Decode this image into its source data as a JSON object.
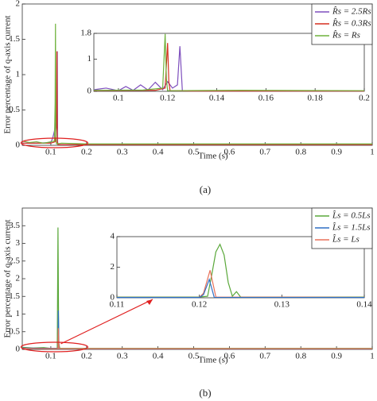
{
  "chart_data": [
    {
      "type": "line",
      "xlabel": "Time (s)",
      "ylabel": "Error percentage of q-axis current",
      "caption": "(a)",
      "xlim": [
        0.02,
        1
      ],
      "ylim": [
        0,
        2
      ],
      "xticks": [
        0.1,
        0.2,
        0.3,
        0.4,
        0.5,
        0.6,
        0.7,
        0.8,
        0.9,
        1
      ],
      "yticks": [
        0,
        0.5,
        1,
        1.5,
        2
      ],
      "legend": "upper right",
      "series": [
        {
          "name": "R̂s = 2.5Rs",
          "color": "#7e4fbd",
          "x": [
            0.02,
            0.06,
            0.1,
            0.105,
            0.11,
            0.114,
            0.117,
            0.118,
            0.119,
            0.12,
            0.2,
            0.5,
            1
          ],
          "values": [
            0.03,
            0.03,
            0.04,
            0.1,
            0.2,
            0.35,
            0.45,
            1.33,
            0.05,
            0.01,
            0.01,
            0.01,
            0.01
          ]
        },
        {
          "name": "R̂s = 0.3Rs",
          "color": "#d62f1f",
          "x": [
            0.02,
            0.06,
            0.1,
            0.112,
            0.116,
            0.117,
            0.118,
            0.12,
            0.2,
            0.5,
            1
          ],
          "values": [
            0.03,
            0.03,
            0.03,
            0.05,
            0.3,
            1.33,
            0.05,
            0.01,
            0.01,
            0.01,
            0.01
          ]
        },
        {
          "name": "R̂s = Rs",
          "color": "#6fb23c",
          "x": [
            0.02,
            0.04,
            0.06,
            0.08,
            0.1,
            0.11,
            0.112,
            0.113,
            0.114,
            0.116,
            0.13,
            0.2,
            0.3,
            0.4,
            0.5,
            0.6,
            0.7,
            0.8,
            0.9,
            1
          ],
          "values": [
            0.06,
            0.04,
            0.05,
            0.03,
            0.05,
            0.06,
            0.6,
            1.72,
            0.1,
            0.02,
            0.03,
            0.02,
            0.02,
            0.02,
            0.02,
            0.02,
            0.02,
            0.02,
            0.02,
            0.02
          ]
        }
      ],
      "inset": {
        "xlim": [
          0.09,
          0.2
        ],
        "ylim": [
          0,
          1.8
        ],
        "xticks": [
          0.1,
          0.12,
          0.14,
          0.16,
          0.18,
          0.2
        ],
        "yticks": [
          0,
          1,
          1.8
        ],
        "series": [
          {
            "color": "#7e4fbd",
            "x": [
              0.09,
              0.095,
              0.1,
              0.103,
              0.106,
              0.109,
              0.112,
              0.115,
              0.118,
              0.12,
              0.122,
              0.124,
              0.125,
              0.126,
              0.13,
              0.2
            ],
            "values": [
              0.05,
              0.1,
              0.02,
              0.15,
              0.03,
              0.2,
              0.04,
              0.28,
              0.05,
              0.3,
              0.1,
              0.2,
              1.4,
              0.02,
              0.01,
              0.01
            ]
          },
          {
            "color": "#d62f1f",
            "x": [
              0.09,
              0.115,
              0.119,
              0.12,
              0.1205,
              0.121,
              0.13,
              0.2
            ],
            "values": [
              0.02,
              0.03,
              0.1,
              1.5,
              0.3,
              0.02,
              0.01,
              0.01
            ]
          },
          {
            "color": "#6fb23c",
            "x": [
              0.09,
              0.11,
              0.118,
              0.119,
              0.1195,
              0.12,
              0.15,
              0.2
            ],
            "values": [
              0.03,
              0.04,
              0.1,
              1.78,
              0.4,
              0.02,
              0.03,
              0.02
            ]
          }
        ]
      }
    },
    {
      "type": "line",
      "xlabel": "Time (s)",
      "ylabel": "Error percentage of q-axis current",
      "caption": "(b)",
      "xlim": [
        0.02,
        1
      ],
      "ylim": [
        0,
        4
      ],
      "xticks": [
        0.1,
        0.2,
        0.3,
        0.4,
        0.5,
        0.6,
        0.7,
        0.8,
        0.9,
        1
      ],
      "yticks": [
        0,
        0.5,
        1,
        1.5,
        2,
        2.5,
        3,
        3.5
      ],
      "legend": "upper right",
      "series": [
        {
          "name": "L̂s = 0.5Ls",
          "color": "#5aa83a",
          "x": [
            0.02,
            0.05,
            0.08,
            0.1,
            0.118,
            0.12,
            0.122,
            0.125,
            0.2,
            0.4,
            0.6,
            0.8,
            1
          ],
          "values": [
            0.06,
            0.04,
            0.05,
            0.03,
            0.03,
            3.45,
            0.2,
            0.03,
            0.03,
            0.03,
            0.03,
            0.03,
            0.03
          ]
        },
        {
          "name": "L̂s = 1.5Ls",
          "color": "#2f6fc4",
          "x": [
            0.02,
            0.1,
            0.12,
            0.121,
            0.123,
            0.2,
            1
          ],
          "values": [
            0.04,
            0.03,
            0.03,
            1.1,
            0.02,
            0.02,
            0.02
          ]
        },
        {
          "name": "L̂s = Ls",
          "color": "#e8715a",
          "x": [
            0.02,
            0.1,
            0.12,
            0.121,
            0.123,
            0.2,
            1
          ],
          "values": [
            0.03,
            0.02,
            0.02,
            0.6,
            0.02,
            0.02,
            0.02
          ]
        }
      ],
      "inset": {
        "xlim": [
          0.11,
          0.14
        ],
        "ylim": [
          0,
          4
        ],
        "xticks": [
          0.11,
          0.12,
          0.13,
          0.14
        ],
        "yticks": [
          0,
          2,
          4
        ],
        "series": [
          {
            "color": "#5aa83a",
            "x": [
              0.11,
              0.12,
              0.121,
              0.1215,
              0.122,
              0.1225,
              0.123,
              0.1235,
              0.124,
              0.1245,
              0.125,
              0.14
            ],
            "values": [
              0.05,
              0.05,
              0.1,
              1.5,
              3.0,
              3.5,
              2.8,
              1.0,
              0.1,
              0.4,
              0.05,
              0.05
            ]
          },
          {
            "color": "#e8715a",
            "x": [
              0.11,
              0.12,
              0.1205,
              0.1213,
              0.122,
              0.14
            ],
            "values": [
              0.03,
              0.03,
              0.3,
              1.8,
              0.05,
              0.03
            ]
          },
          {
            "color": "#2f6fc4",
            "x": [
              0.11,
              0.12,
              0.1205,
              0.1212,
              0.1218,
              0.14
            ],
            "values": [
              0.02,
              0.02,
              0.2,
              1.2,
              0.03,
              0.02
            ]
          }
        ]
      }
    }
  ]
}
